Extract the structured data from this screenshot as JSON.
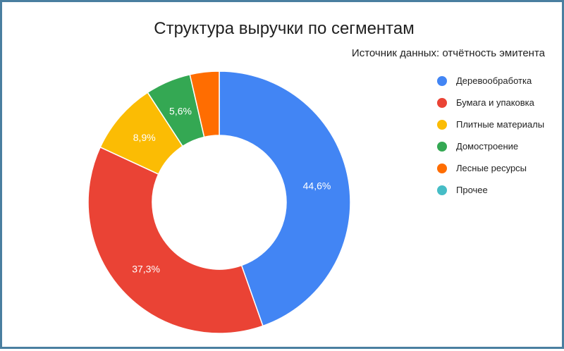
{
  "chart_data": {
    "type": "pie",
    "donut": true,
    "title": "Структура выручки по сегментам",
    "subtitle": "Источник данных: отчётность эмитента",
    "legend_position": "right",
    "series": [
      {
        "name": "Деревообработка",
        "value": 44.6,
        "label": "44,6%",
        "color": "#4285F4"
      },
      {
        "name": "Бумага и упаковка",
        "value": 37.3,
        "label": "37,3%",
        "color": "#EA4335"
      },
      {
        "name": "Плитные материалы",
        "value": 8.9,
        "label": "8,9%",
        "color": "#FBBC04"
      },
      {
        "name": "Домостроение",
        "value": 5.6,
        "label": "5,6%",
        "color": "#34A853"
      },
      {
        "name": "Лесные ресурсы",
        "value": 3.6,
        "label": "",
        "color": "#FF6D01"
      },
      {
        "name": "Прочее",
        "value": 0,
        "label": "",
        "color": "#46BDC6"
      }
    ]
  }
}
